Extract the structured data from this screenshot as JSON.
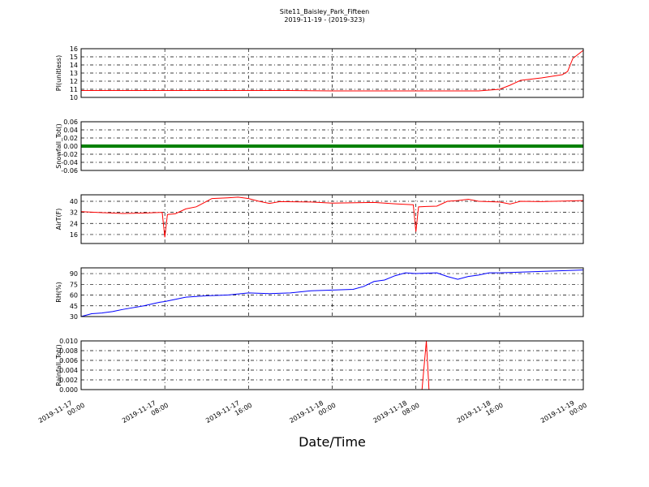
{
  "chart_data": [
    {
      "type": "line",
      "title": "Site11_Baisley_Park_Fifteen",
      "subtitle": "2019-11-19 - (2019-323)",
      "ylabel": "PI(unitless)",
      "grid": true,
      "xlim": [
        "2019-11-17 00:00",
        "2019-11-19 00:00"
      ],
      "xticks": [
        "2019-11-17 00:00",
        "2019-11-17 08:00",
        "2019-11-17 16:00",
        "2019-11-18 00:00",
        "2019-11-18 08:00",
        "2019-11-18 16:00",
        "2019-11-19 00:00"
      ],
      "ylim": [
        10,
        16
      ],
      "yticks": [
        10,
        11,
        12,
        13,
        14,
        15,
        16
      ],
      "x": [
        "2019-11-17 00:00",
        "2019-11-17 04:00",
        "2019-11-17 08:00",
        "2019-11-17 12:00",
        "2019-11-17 16:00",
        "2019-11-17 20:00",
        "2019-11-18 00:00",
        "2019-11-18 04:00",
        "2019-11-18 08:00",
        "2019-11-18 12:00",
        "2019-11-18 14:00",
        "2019-11-18 16:00",
        "2019-11-18 17:00",
        "2019-11-18 18:00",
        "2019-11-18 20:00",
        "2019-11-18 21:00",
        "2019-11-18 22:00",
        "2019-11-18 22:30",
        "2019-11-18 23:00",
        "2019-11-19 00:00"
      ],
      "series": [
        {
          "name": "PI",
          "color": "#ff0000",
          "values": [
            10.85,
            10.85,
            10.85,
            10.85,
            10.85,
            10.85,
            10.8,
            10.8,
            10.8,
            10.8,
            10.8,
            11.0,
            11.5,
            12.1,
            12.4,
            12.6,
            12.8,
            13.2,
            14.8,
            15.8
          ]
        }
      ]
    },
    {
      "type": "line",
      "ylabel": "Snowfall_Tot()",
      "grid": true,
      "xlim": [
        "2019-11-17 00:00",
        "2019-11-19 00:00"
      ],
      "xticks": [
        "2019-11-17 00:00",
        "2019-11-17 08:00",
        "2019-11-17 16:00",
        "2019-11-18 00:00",
        "2019-11-18 08:00",
        "2019-11-18 16:00",
        "2019-11-19 00:00"
      ],
      "ylim": [
        -0.06,
        0.06
      ],
      "yticks": [
        -0.06,
        -0.04,
        -0.02,
        {
          "value": 0,
          "label": "0.00"
        },
        0.02,
        0.04,
        0.06
      ],
      "x": [
        "2019-11-17 00:00",
        "2019-11-17 08:00",
        "2019-11-17 16:00",
        "2019-11-18 00:00",
        "2019-11-18 08:00",
        "2019-11-18 16:00",
        "2019-11-19 00:00"
      ],
      "series": [
        {
          "name": "Snowfall",
          "color": "#008000",
          "values": [
            0,
            0,
            0,
            0,
            0,
            0,
            0
          ]
        }
      ]
    },
    {
      "type": "line",
      "ylabel": "AirT(F)",
      "grid": true,
      "xlim": [
        "2019-11-17 00:00",
        "2019-11-19 00:00"
      ],
      "xticks": [
        "2019-11-17 00:00",
        "2019-11-17 08:00",
        "2019-11-17 16:00",
        "2019-11-18 00:00",
        "2019-11-18 08:00",
        "2019-11-18 16:00",
        "2019-11-19 00:00"
      ],
      "ylim": [
        9.5,
        44.7
      ],
      "yticks": [
        16,
        24,
        32,
        40
      ],
      "x": [
        "2019-11-17 00:00",
        "2019-11-17 02:00",
        "2019-11-17 04:00",
        "2019-11-17 06:00",
        "2019-11-17 07:45",
        "2019-11-17 08:00",
        "2019-11-17 08:15",
        "2019-11-17 09:00",
        "2019-11-17 10:00",
        "2019-11-17 11:00",
        "2019-11-17 12:00",
        "2019-11-17 12:30",
        "2019-11-17 14:00",
        "2019-11-17 15:00",
        "2019-11-17 16:00",
        "2019-11-17 17:00",
        "2019-11-17 18:00",
        "2019-11-17 19:00",
        "2019-11-17 22:00",
        "2019-11-18 00:00",
        "2019-11-18 04:00",
        "2019-11-18 06:00",
        "2019-11-18 07:45",
        "2019-11-18 08:00",
        "2019-11-18 08:15",
        "2019-11-18 09:00",
        "2019-11-18 10:00",
        "2019-11-18 11:00",
        "2019-11-18 12:00",
        "2019-11-18 13:00",
        "2019-11-18 14:00",
        "2019-11-18 16:00",
        "2019-11-18 17:00",
        "2019-11-18 18:00",
        "2019-11-18 20:00",
        "2019-11-19 00:00"
      ],
      "series": [
        {
          "name": "AirT",
          "color": "#ff0000",
          "values": [
            32.5,
            31.8,
            31.2,
            31.5,
            32.0,
            14,
            30.5,
            31.0,
            34.5,
            36,
            40,
            42,
            42.5,
            43,
            42,
            40,
            38.5,
            39.8,
            39.5,
            38.7,
            39.2,
            38.2,
            37.5,
            18,
            36,
            36.3,
            36.5,
            40,
            40.5,
            41.5,
            40,
            39.5,
            38,
            40,
            39.8,
            40.5
          ]
        }
      ]
    },
    {
      "type": "line",
      "ylabel": "RH(%)",
      "grid": true,
      "xlim": [
        "2019-11-17 00:00",
        "2019-11-19 00:00"
      ],
      "xticks": [
        "2019-11-17 00:00",
        "2019-11-17 08:00",
        "2019-11-17 16:00",
        "2019-11-18 00:00",
        "2019-11-18 08:00",
        "2019-11-18 16:00",
        "2019-11-19 00:00"
      ],
      "ylim": [
        30,
        98
      ],
      "yticks": [
        30,
        45,
        60,
        75,
        90
      ],
      "x": [
        "2019-11-17 00:00",
        "2019-11-17 01:00",
        "2019-11-17 02:00",
        "2019-11-17 03:00",
        "2019-11-17 04:00",
        "2019-11-17 06:00",
        "2019-11-17 07:30",
        "2019-11-17 08:00",
        "2019-11-17 10:00",
        "2019-11-17 12:00",
        "2019-11-17 14:00",
        "2019-11-17 16:00",
        "2019-11-17 18:00",
        "2019-11-17 20:00",
        "2019-11-17 22:00",
        "2019-11-18 00:00",
        "2019-11-18 02:00",
        "2019-11-18 03:00",
        "2019-11-18 04:00",
        "2019-11-18 05:00",
        "2019-11-18 06:00",
        "2019-11-18 07:00",
        "2019-11-18 08:00",
        "2019-11-18 10:00",
        "2019-11-18 11:00",
        "2019-11-18 12:00",
        "2019-11-18 13:00",
        "2019-11-18 14:00",
        "2019-11-18 15:00",
        "2019-11-18 16:00",
        "2019-11-18 18:00",
        "2019-11-18 20:00",
        "2019-11-18 22:00",
        "2019-11-19 00:00"
      ],
      "series": [
        {
          "name": "RH",
          "color": "#0000ff",
          "values": [
            30,
            34,
            35,
            37,
            40,
            45,
            50,
            51,
            57,
            59,
            60,
            63,
            62,
            63,
            66,
            67,
            68,
            72,
            79,
            81,
            87,
            91,
            90,
            91,
            86,
            82,
            86,
            88,
            91,
            91,
            92,
            93,
            94,
            95
          ]
        }
      ]
    },
    {
      "type": "line",
      "ylabel": "Rainfall_Tot()",
      "xlabel": "Date/Time",
      "grid": true,
      "xlim": [
        "2019-11-17 00:00",
        "2019-11-19 00:00"
      ],
      "xticks": [
        "2019-11-17 00:00",
        "2019-11-17 08:00",
        "2019-11-17 16:00",
        "2019-11-18 00:00",
        "2019-11-18 08:00",
        "2019-11-18 16:00",
        "2019-11-19 00:00"
      ],
      "ylim": [
        0,
        0.01
      ],
      "yticks": [
        {
          "value": 0,
          "label": "0.000"
        },
        {
          "value": 0.002,
          "label": "0.002"
        },
        {
          "value": 0.004,
          "label": "0.004"
        },
        {
          "value": 0.006,
          "label": "0.006"
        },
        {
          "value": 0.008,
          "label": "0.008"
        },
        {
          "value": 0.01,
          "label": "0.010"
        }
      ],
      "x": [
        "2019-11-17 00:00",
        "2019-11-18 08:35",
        "2019-11-18 09:00",
        "2019-11-18 09:15",
        "2019-11-19 00:00"
      ],
      "series": [
        {
          "name": "Rainfall",
          "color": "#ff0000",
          "values": [
            0,
            0,
            0.01,
            0,
            0
          ]
        }
      ]
    }
  ]
}
